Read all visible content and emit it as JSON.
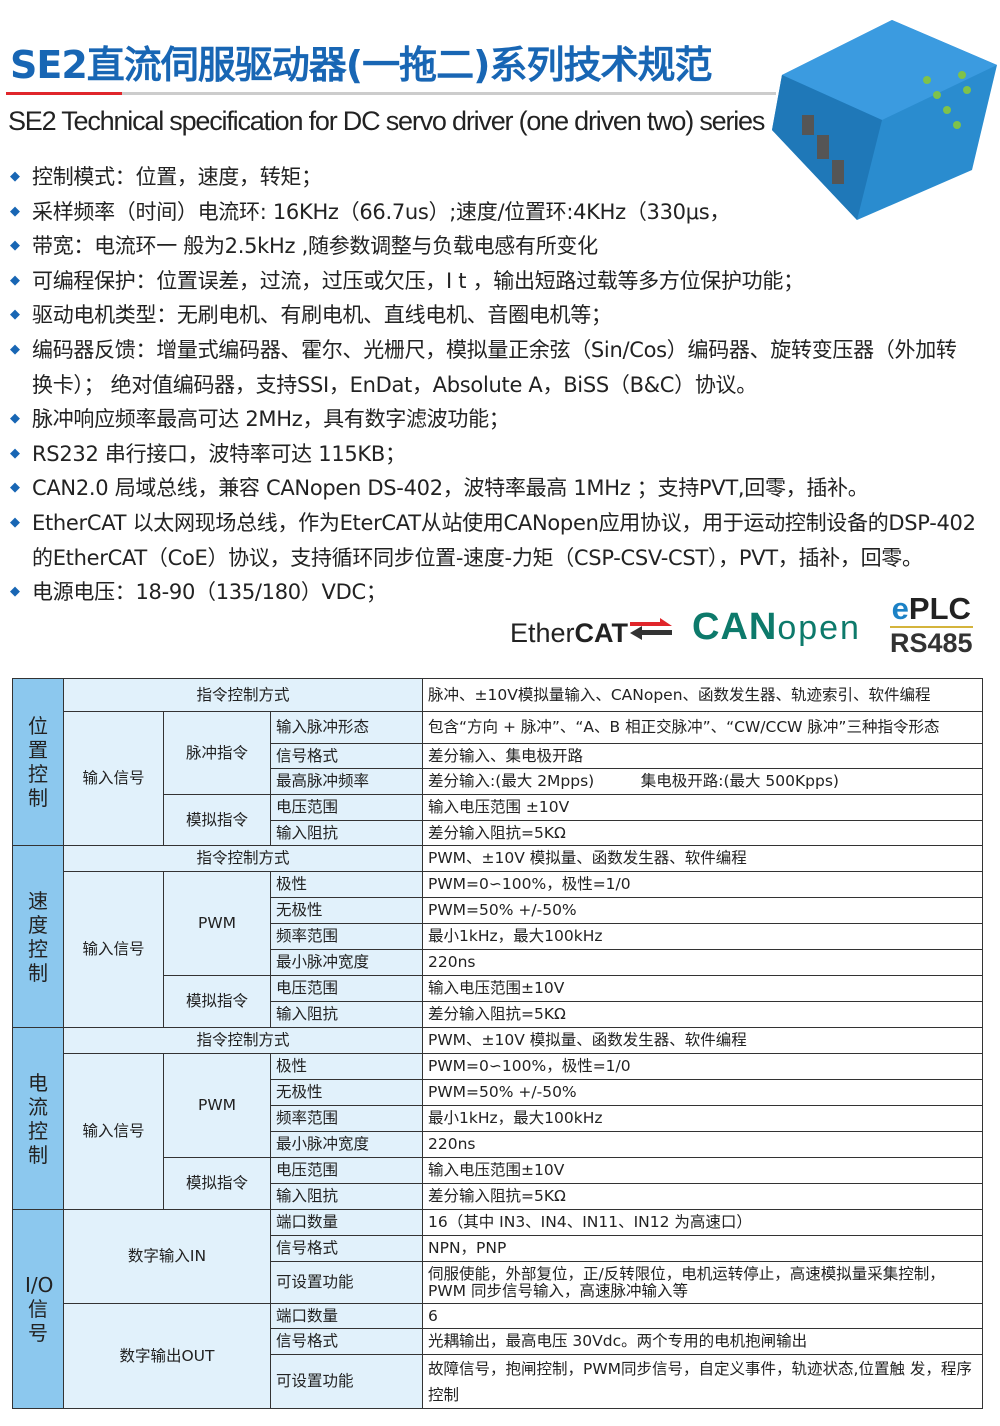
{
  "header": {
    "title_cn": "SE2直流伺服驱动器(一拖二)系列技术规范",
    "title_en": "SE2 Technical specification for DC servo driver (one driven two) series",
    "accent": "#1866b4",
    "rule_accent": "#e0262b"
  },
  "bullets": [
    "控制模式：位置，速度，转矩；",
    "采样频率（时间）电流环: 16KHz（66.7us）;速度/位置环:4KHz（330μs，",
    "带宽：电流环一 般为2.5kHz ,随参数调整与负载电感有所变化",
    "可编程保护：位置误差，过流，过压或欠压，I t ，输出短路过载等多方位保护功能；",
    "驱动电机类型：无刷电机、有刷电机、直线电机、音圈电机等；",
    "编码器反馈：增量式编码器、霍尔、光栅尺，模拟量正余弦（Sin/Cos）编码器、旋转变压器（外加转换卡）； 绝对值编码器，支持SSI，EnDat，Absolute A，BiSS（B&C）协议。",
    "脉冲响应频率最高可达 2MHz，具有数字滤波功能；",
    "RS232 串行接口，波特率可达 115KB；",
    "CAN2.0 局域总线，兼容 CANopen DS-402，波特率最高 1MHz ；支持PVT,回零，插补。",
    "EtherCAT 以太网现场总线，作为EterCAT从站使用CANopen应用协议，用于运动控制设备的DSP-402的EtherCAT（CoE）协议，支持循环同步位置-速度-力矩（CSP-CSV-CST），PVT，插补，回零。",
    "电源电压：18-90（135/180）VDC；"
  ],
  "logos": {
    "ethercat": "EtherCAT",
    "canopen": "CANopen",
    "eplc": "ePLC",
    "rs485": "RS485"
  },
  "table": {
    "position": {
      "section": "位置控制",
      "mode_label": "指令控制方式",
      "mode_value": "脉冲、±10V模拟量输入、CANopen、函数发生器、轨迹索引、软件编程",
      "input": "输入信号",
      "pulse": "脉冲指令",
      "analog": "模拟指令",
      "rows": [
        [
          "输入脉冲形态",
          "包含“方向 + 脉冲”、“A、B 相正交脉冲”、“CW/CCW 脉冲”三种指令形态"
        ],
        [
          "信号格式",
          "差分输入、集电极开路"
        ],
        [
          "最高脉冲频率",
          "差分输入:(最大 2Mpps)　　　集电极开路:(最大 500Kpps)"
        ],
        [
          "电压范围",
          "输入电压范围 ±10V"
        ],
        [
          "输入阻抗",
          "差分输入阻抗=5KΩ"
        ]
      ]
    },
    "speed": {
      "section": "速度控制",
      "mode_label": "指令控制方式",
      "mode_value": "PWM、±10V 模拟量、函数发生器、软件编程",
      "input": "输入信号",
      "pwm": "PWM",
      "analog": "模拟指令",
      "rows": [
        [
          "极性",
          "PWM=0∽100%，极性=1/0"
        ],
        [
          "无极性",
          "PWM=50% +/-50%"
        ],
        [
          "频率范围",
          "最小1kHz，最大100kHz"
        ],
        [
          "最小脉冲宽度",
          "220ns"
        ],
        [
          "电压范围",
          "输入电压范围±10V"
        ],
        [
          "输入阻抗",
          "差分输入阻抗=5KΩ"
        ]
      ]
    },
    "current": {
      "section": "电流控制",
      "mode_label": "指令控制方式",
      "mode_value": "PWM、±10V 模拟量、函数发生器、软件编程",
      "input": "输入信号",
      "pwm": "PWM",
      "analog": "模拟指令",
      "rows": [
        [
          "极性",
          "PWM=0∽100%，极性=1/0"
        ],
        [
          "无极性",
          "PWM=50% +/-50%"
        ],
        [
          "频率范围",
          "最小1kHz，最大100kHz"
        ],
        [
          "最小脉冲宽度",
          "220ns"
        ],
        [
          "电压范围",
          "输入电压范围±10V"
        ],
        [
          "输入阻抗",
          "差分输入阻抗=5KΩ"
        ]
      ]
    },
    "io": {
      "section": "I/O信号",
      "din": "数字输入IN",
      "dout": "数字输出OUT",
      "in_rows": [
        [
          "端口数量",
          "16（其中 IN3、IN4、IN11、IN12 为高速口）"
        ],
        [
          "信号格式",
          "NPN，PNP"
        ],
        [
          "可设置功能",
          "伺服使能，外部复位，正/反转限位，电机运转停止，高速模拟量采集控制，PWM 同步信号输入，高速脉冲输入等"
        ]
      ],
      "out_rows": [
        [
          "端口数量",
          "6"
        ],
        [
          "信号格式",
          "光耦输出，最高电压 30Vdc。两个专用的电机抱闸输出"
        ],
        [
          "可设置功能",
          "故障信号，抱闸控制，PWM同步信号，自定义事件，轨迹状态,位置触 发，程序控制"
        ]
      ]
    }
  }
}
